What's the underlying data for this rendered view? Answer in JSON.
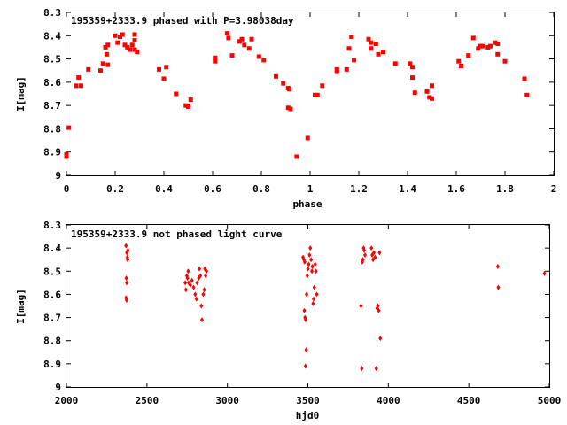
{
  "chart_data": [
    {
      "type": "scatter",
      "title": "195359+2333.9 phased with P=3.98038day",
      "xlabel": "phase",
      "ylabel": "I[mag]",
      "xlim": [
        0,
        2
      ],
      "ylim": [
        8.3,
        9.0
      ],
      "y_inverted": true,
      "grid": false,
      "marker_color": "#ff0000",
      "xticks": [
        "0",
        "0.2",
        "0.4",
        "0.6",
        "0.8",
        "1",
        "1.2",
        "1.4",
        "1.6",
        "1.8",
        "2"
      ],
      "yticks": [
        "8.3",
        "8.4",
        "8.5",
        "8.6",
        "8.7",
        "8.8",
        "8.9",
        "9"
      ],
      "points": [
        [
          0.0,
          8.91
        ],
        [
          0.0,
          8.92
        ],
        [
          0.01,
          8.795
        ],
        [
          0.04,
          8.615
        ],
        [
          0.05,
          8.58
        ],
        [
          0.06,
          8.615
        ],
        [
          0.09,
          8.545
        ],
        [
          0.14,
          8.55
        ],
        [
          0.15,
          8.52
        ],
        [
          0.16,
          8.45
        ],
        [
          0.17,
          8.44
        ],
        [
          0.165,
          8.48
        ],
        [
          0.17,
          8.525
        ],
        [
          0.2,
          8.4
        ],
        [
          0.21,
          8.43
        ],
        [
          0.22,
          8.405
        ],
        [
          0.23,
          8.395
        ],
        [
          0.24,
          8.44
        ],
        [
          0.25,
          8.45
        ],
        [
          0.26,
          8.46
        ],
        [
          0.27,
          8.44
        ],
        [
          0.28,
          8.42
        ],
        [
          0.28,
          8.395
        ],
        [
          0.29,
          8.47
        ],
        [
          0.28,
          8.46
        ],
        [
          0.38,
          8.545
        ],
        [
          0.4,
          8.585
        ],
        [
          0.41,
          8.535
        ],
        [
          0.45,
          8.65
        ],
        [
          0.49,
          8.7
        ],
        [
          0.5,
          8.705
        ],
        [
          0.51,
          8.675
        ],
        [
          0.61,
          8.495
        ],
        [
          0.61,
          8.51
        ],
        [
          0.66,
          8.39
        ],
        [
          0.665,
          8.41
        ],
        [
          0.68,
          8.485
        ],
        [
          0.71,
          8.425
        ],
        [
          0.72,
          8.415
        ],
        [
          0.73,
          8.44
        ],
        [
          0.75,
          8.455
        ],
        [
          0.76,
          8.415
        ],
        [
          0.79,
          8.49
        ],
        [
          0.81,
          8.505
        ],
        [
          0.86,
          8.575
        ],
        [
          0.89,
          8.605
        ],
        [
          0.91,
          8.625
        ],
        [
          0.915,
          8.63
        ],
        [
          0.91,
          8.71
        ],
        [
          0.92,
          8.715
        ],
        [
          0.945,
          8.92
        ],
        [
          0.99,
          8.84
        ],
        [
          1.02,
          8.655
        ],
        [
          1.03,
          8.655
        ],
        [
          1.05,
          8.615
        ],
        [
          1.11,
          8.545
        ],
        [
          1.11,
          8.555
        ],
        [
          1.15,
          8.545
        ],
        [
          1.16,
          8.455
        ],
        [
          1.17,
          8.405
        ],
        [
          1.18,
          8.505
        ],
        [
          1.24,
          8.415
        ],
        [
          1.25,
          8.43
        ],
        [
          1.25,
          8.455
        ],
        [
          1.27,
          8.435
        ],
        [
          1.28,
          8.48
        ],
        [
          1.3,
          8.47
        ],
        [
          1.35,
          8.52
        ],
        [
          1.41,
          8.52
        ],
        [
          1.42,
          8.535
        ],
        [
          1.42,
          8.58
        ],
        [
          1.43,
          8.645
        ],
        [
          1.48,
          8.64
        ],
        [
          1.49,
          8.665
        ],
        [
          1.5,
          8.67
        ],
        [
          1.5,
          8.615
        ],
        [
          1.61,
          8.51
        ],
        [
          1.62,
          8.53
        ],
        [
          1.65,
          8.485
        ],
        [
          1.67,
          8.41
        ],
        [
          1.69,
          8.455
        ],
        [
          1.7,
          8.445
        ],
        [
          1.71,
          8.445
        ],
        [
          1.73,
          8.45
        ],
        [
          1.74,
          8.445
        ],
        [
          1.76,
          8.43
        ],
        [
          1.77,
          8.435
        ],
        [
          1.77,
          8.48
        ],
        [
          1.8,
          8.51
        ],
        [
          1.88,
          8.585
        ],
        [
          1.89,
          8.655
        ]
      ]
    },
    {
      "type": "scatter",
      "title": "195359+2333.9 not phased light curve",
      "xlabel": "hjd0",
      "ylabel": "I[mag]",
      "xlim": [
        2000,
        5000
      ],
      "ylim": [
        8.3,
        9.0
      ],
      "y_inverted": true,
      "grid": false,
      "marker_color": "#ff0000",
      "xticks": [
        "2000",
        "2500",
        "3000",
        "3500",
        "4000",
        "4500",
        "5000"
      ],
      "yticks": [
        "8.3",
        "8.4",
        "8.5",
        "8.6",
        "8.7",
        "8.8",
        "8.9",
        "9"
      ],
      "points": [
        [
          2370,
          8.39
        ],
        [
          2375,
          8.42
        ],
        [
          2378,
          8.44
        ],
        [
          2372,
          8.53
        ],
        [
          2375,
          8.55
        ],
        [
          2370,
          8.615
        ],
        [
          2374,
          8.625
        ],
        [
          2380,
          8.45
        ],
        [
          2382,
          8.41
        ],
        [
          2738,
          8.55
        ],
        [
          2742,
          8.58
        ],
        [
          2748,
          8.52
        ],
        [
          2752,
          8.53
        ],
        [
          2756,
          8.5
        ],
        [
          2760,
          8.55
        ],
        [
          2770,
          8.56
        ],
        [
          2780,
          8.54
        ],
        [
          2790,
          8.57
        ],
        [
          2800,
          8.6
        ],
        [
          2808,
          8.62
        ],
        [
          2812,
          8.55
        ],
        [
          2822,
          8.53
        ],
        [
          2826,
          8.49
        ],
        [
          2832,
          8.52
        ],
        [
          2838,
          8.65
        ],
        [
          2842,
          8.71
        ],
        [
          2850,
          8.6
        ],
        [
          2856,
          8.58
        ],
        [
          2860,
          8.49
        ],
        [
          2865,
          8.52
        ],
        [
          2870,
          8.5
        ],
        [
          3470,
          8.44
        ],
        [
          3475,
          8.45
        ],
        [
          3480,
          8.46
        ],
        [
          3478,
          8.67
        ],
        [
          3482,
          8.7
        ],
        [
          3486,
          8.71
        ],
        [
          3490,
          8.84
        ],
        [
          3485,
          8.91
        ],
        [
          3492,
          8.6
        ],
        [
          3496,
          8.52
        ],
        [
          3500,
          8.49
        ],
        [
          3505,
          8.47
        ],
        [
          3510,
          8.43
        ],
        [
          3515,
          8.4
        ],
        [
          3520,
          8.45
        ],
        [
          3525,
          8.5
        ],
        [
          3528,
          8.48
        ],
        [
          3532,
          8.64
        ],
        [
          3536,
          8.62
        ],
        [
          3540,
          8.57
        ],
        [
          3545,
          8.47
        ],
        [
          3550,
          8.5
        ],
        [
          3555,
          8.6
        ],
        [
          3830,
          8.65
        ],
        [
          3835,
          8.92
        ],
        [
          3838,
          8.46
        ],
        [
          3842,
          8.45
        ],
        [
          3846,
          8.4
        ],
        [
          3850,
          8.41
        ],
        [
          3855,
          8.43
        ],
        [
          3895,
          8.4
        ],
        [
          3900,
          8.43
        ],
        [
          3905,
          8.45
        ],
        [
          3910,
          8.42
        ],
        [
          3918,
          8.44
        ],
        [
          3925,
          8.92
        ],
        [
          3930,
          8.66
        ],
        [
          3935,
          8.65
        ],
        [
          3940,
          8.67
        ],
        [
          3945,
          8.42
        ],
        [
          3950,
          8.79
        ],
        [
          4680,
          8.48
        ],
        [
          4683,
          8.57
        ],
        [
          4970,
          8.51
        ]
      ]
    }
  ]
}
